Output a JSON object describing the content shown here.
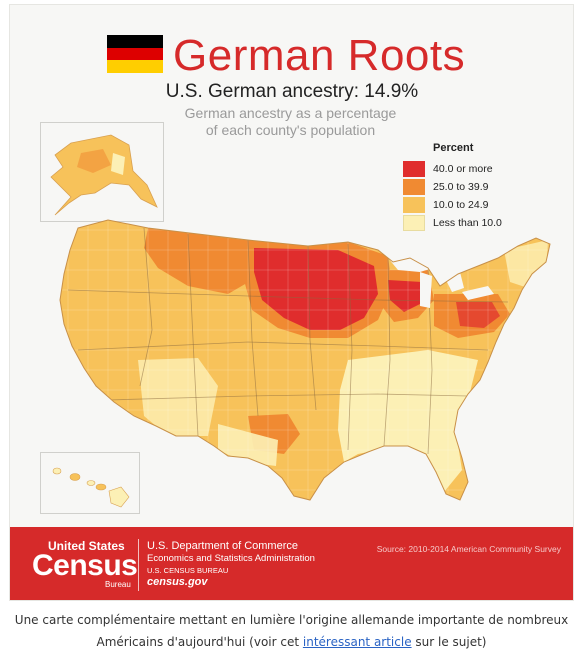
{
  "header": {
    "title": "German Roots",
    "subtitle": "U.S. German ancestry: 14.9%",
    "description_line1": "German ancestry as a percentage",
    "description_line2": "of each county's population"
  },
  "flag_colors": [
    "#000000",
    "#dd0000",
    "#ffce00"
  ],
  "legend": {
    "title": "Percent",
    "items": [
      {
        "label": "40.0 or more",
        "color": "#e02d2d"
      },
      {
        "label": "25.0 to 39.9",
        "color": "#f08a32"
      },
      {
        "label": "10.0 to 24.9",
        "color": "#f7c25a"
      },
      {
        "label": "Less than 10.0",
        "color": "#fcf0b5"
      }
    ]
  },
  "footer": {
    "census_top": "United States",
    "census_big": "Census",
    "census_bureau": "Bureau",
    "dept_line1": "U.S. Department of Commerce",
    "dept_line2": "Economics and Statistics Administration",
    "dept_line3": "U.S. CENSUS BUREAU",
    "dept_line4": "census.gov",
    "source": "Source: 2010-2014 American Community Survey",
    "background": "#d62a2a"
  },
  "caption": {
    "text_before": "Une carte complémentaire mettant en lumière l'origine allemande importante de nombreux Américains d'aujourd'hui (voir cet ",
    "link": "intéressant article",
    "text_after": " sur le sujet)"
  }
}
